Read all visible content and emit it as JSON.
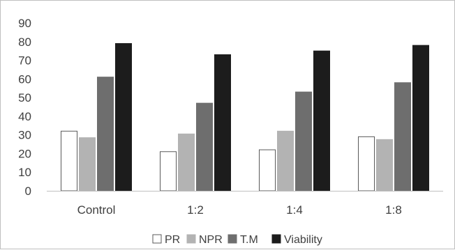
{
  "chart_data": {
    "type": "bar",
    "title": "",
    "xlabel": "",
    "ylabel": "",
    "ylim": [
      0,
      90
    ],
    "yticks": [
      "0",
      "10",
      "20",
      "30",
      "40",
      "50",
      "60",
      "70",
      "80",
      "90"
    ],
    "grid": false,
    "legend_position": "bottom",
    "categories": [
      "Control",
      "1:2",
      "1:4",
      "1:8"
    ],
    "series": [
      {
        "name": "PR",
        "values": [
          32,
          21,
          22,
          29
        ],
        "color": "#ffffff",
        "stroke": "#595959"
      },
      {
        "name": "NPR",
        "values": [
          28.5,
          30.5,
          32,
          27.5
        ],
        "color": "#b3b3b3",
        "stroke": "#b3b3b3"
      },
      {
        "name": "T.M",
        "values": [
          61,
          47,
          53,
          58
        ],
        "color": "#6e6e6e",
        "stroke": "#6e6e6e"
      },
      {
        "name": "Viability",
        "values": [
          79,
          73,
          75,
          78
        ],
        "color": "#1c1c1c",
        "stroke": "#1c1c1c"
      }
    ]
  }
}
